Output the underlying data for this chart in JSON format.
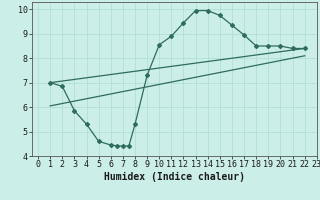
{
  "title": "",
  "xlabel": "Humidex (Indice chaleur)",
  "bg_color": "#cceee8",
  "line_color": "#2e6b60",
  "grid_color": "#aaddd5",
  "xlim": [
    -0.5,
    23
  ],
  "ylim": [
    4,
    10.3
  ],
  "yticks": [
    4,
    5,
    6,
    7,
    8,
    9,
    10
  ],
  "xticks": [
    0,
    1,
    2,
    3,
    4,
    5,
    6,
    7,
    8,
    9,
    10,
    11,
    12,
    13,
    14,
    15,
    16,
    17,
    18,
    19,
    20,
    21,
    22,
    23
  ],
  "curve1_x": [
    1,
    2,
    3,
    4,
    5,
    6,
    6.5,
    7,
    7.5,
    8,
    9,
    10,
    11,
    12,
    13,
    14,
    15,
    16,
    17,
    18,
    19,
    20,
    21,
    22
  ],
  "curve1_y": [
    7.0,
    6.85,
    5.85,
    5.3,
    4.6,
    4.45,
    4.42,
    4.4,
    4.42,
    5.3,
    7.3,
    8.55,
    8.9,
    9.45,
    9.95,
    9.95,
    9.75,
    9.35,
    8.95,
    8.5,
    8.5,
    8.5,
    8.4,
    8.4
  ],
  "curve2_x": [
    1,
    22
  ],
  "curve2_y": [
    7.0,
    8.4
  ],
  "curve3_x": [
    1,
    22
  ],
  "curve3_y": [
    6.05,
    8.1
  ],
  "xlabel_fontsize": 7,
  "tick_fontsize": 6
}
